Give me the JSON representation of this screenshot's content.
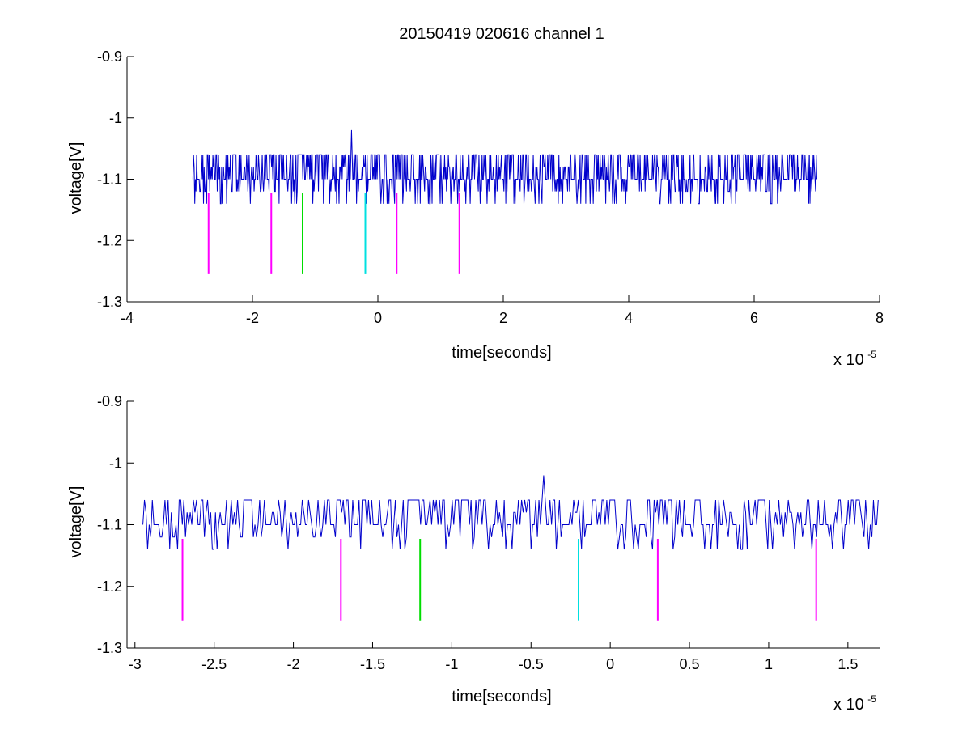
{
  "figure": {
    "title": "20150419 020616 channel 1"
  },
  "colors": {
    "signal": "#0000cc",
    "marker_magenta": "#ff00ff",
    "marker_green": "#00dd00",
    "marker_cyan": "#00e0e0",
    "axes": "#000000"
  },
  "chart_data": [
    {
      "type": "line",
      "title": "20150419 020616 channel 1",
      "xlabel": "time[seconds]",
      "ylabel": "voltage[V]",
      "x_multiplier_label": {
        "base": "x 10",
        "exponent": "-5"
      },
      "xlim": [
        -4,
        8
      ],
      "ylim": [
        -1.3,
        -0.9
      ],
      "x_ticks": [
        -4,
        -2,
        0,
        2,
        4,
        6,
        8
      ],
      "x_tick_labels": [
        "-4",
        "-2",
        "0",
        "2",
        "4",
        "6",
        "8"
      ],
      "y_ticks": [
        -0.9,
        -1.0,
        -1.1,
        -1.2,
        -1.3
      ],
      "y_tick_labels": [
        "-0.9",
        "-1",
        "-1.1",
        "-1.2",
        "-1.3"
      ],
      "grid": false,
      "series": [
        {
          "kind": "trace",
          "color": "#0000cc",
          "x_range": [
            -2.95,
            7.0
          ],
          "baseline": -1.1,
          "levels": [
            -1.06,
            -1.08,
            -1.1,
            -1.12,
            -1.14
          ],
          "spike": {
            "x": -0.42,
            "y": -1.02
          }
        },
        {
          "kind": "markers",
          "color": "#ff00ff",
          "x": [
            -2.7,
            -1.7,
            0.3,
            1.3
          ],
          "y_range": [
            -1.123,
            -1.255
          ]
        },
        {
          "kind": "markers",
          "color": "#00dd00",
          "x": [
            -1.2
          ],
          "y_range": [
            -1.123,
            -1.255
          ]
        },
        {
          "kind": "markers",
          "color": "#00e0e0",
          "x": [
            -0.2
          ],
          "y_range": [
            -1.123,
            -1.255
          ]
        }
      ]
    },
    {
      "type": "line",
      "xlabel": "time[seconds]",
      "ylabel": "voltage[V]",
      "x_multiplier_label": {
        "base": "x 10",
        "exponent": "-5"
      },
      "xlim": [
        -3.05,
        1.7
      ],
      "ylim": [
        -1.3,
        -0.9
      ],
      "x_ticks": [
        -3,
        -2.5,
        -2,
        -1.5,
        -1,
        -0.5,
        0,
        0.5,
        1,
        1.5
      ],
      "x_tick_labels": [
        "-3",
        "-2.5",
        "-2",
        "-1.5",
        "-1",
        "-0.5",
        "0",
        "0.5",
        "1",
        "1.5"
      ],
      "y_ticks": [
        -0.9,
        -1.0,
        -1.1,
        -1.2,
        -1.3
      ],
      "y_tick_labels": [
        "-0.9",
        "-1",
        "-1.1",
        "-1.2",
        "-1.3"
      ],
      "grid": false,
      "series": [
        {
          "kind": "trace",
          "color": "#0000cc",
          "x_range": [
            -2.95,
            1.7
          ],
          "baseline": -1.1,
          "levels": [
            -1.06,
            -1.08,
            -1.1,
            -1.12,
            -1.14
          ],
          "spike": {
            "x": -0.42,
            "y": -1.02
          }
        },
        {
          "kind": "markers",
          "color": "#ff00ff",
          "x": [
            -2.7,
            -1.7,
            0.3,
            1.3
          ],
          "y_range": [
            -1.123,
            -1.255
          ]
        },
        {
          "kind": "markers",
          "color": "#00dd00",
          "x": [
            -1.2
          ],
          "y_range": [
            -1.123,
            -1.255
          ]
        },
        {
          "kind": "markers",
          "color": "#00e0e0",
          "x": [
            -0.2
          ],
          "y_range": [
            -1.123,
            -1.255
          ]
        }
      ]
    }
  ]
}
